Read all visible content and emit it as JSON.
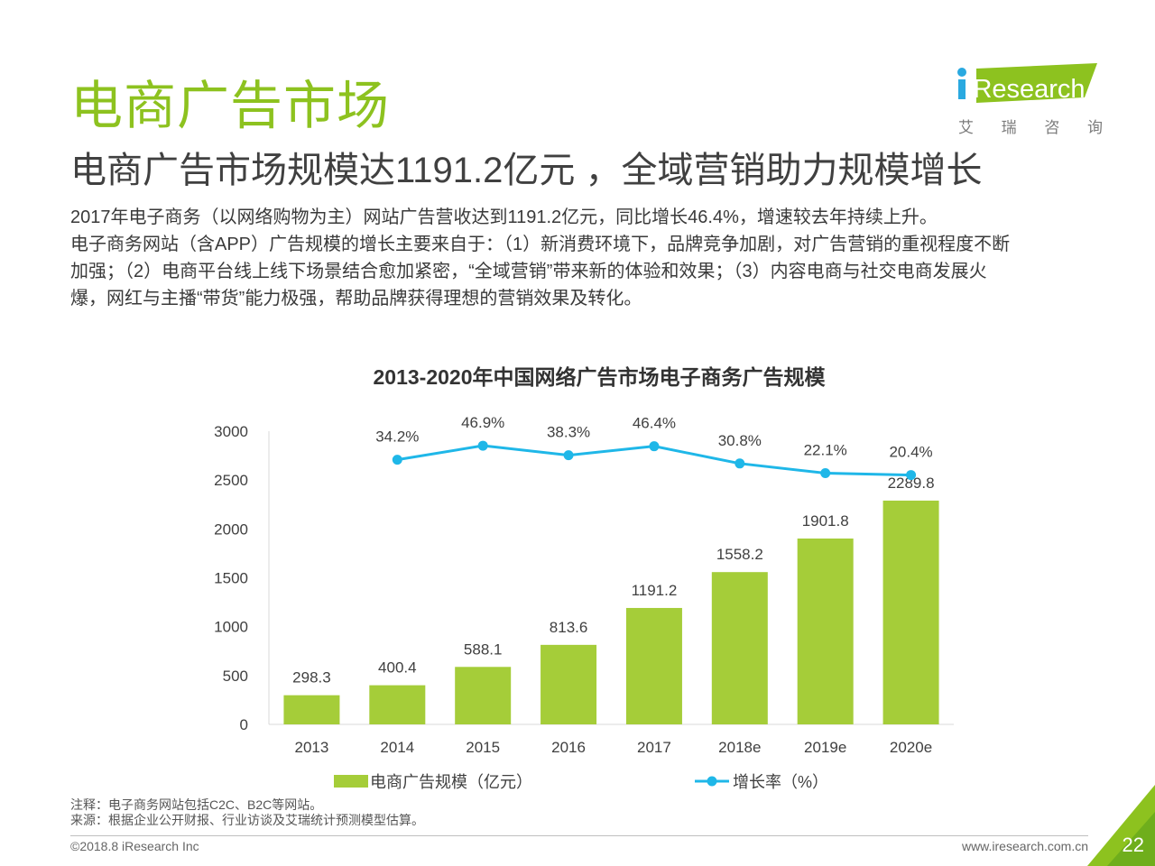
{
  "page": {
    "section_title": "电商广告市场",
    "headline": "电商广告市场规模达1191.2亿元 ，全域营销助力规模增长",
    "summary_lines": [
      "2017年电子商务（以网络购物为主）网站广告营收达到1191.2亿元，同比增长46.4%，增速较去年持续上升。",
      "电子商务网站（含APP）广告规模的增长主要来自于：（1）新消费环境下，品牌竞争加剧，对广告营销的重视程度不断",
      "加强；（2）电商平台线上线下场景结合愈加紧密，“全域营销”带来新的体验和效果；（3）内容电商与社交电商发展火",
      "爆，网红与主播“带货”能力极强，帮助品牌获得理想的营销效果及转化。"
    ],
    "note": "注释：电子商务网站包括C2C、B2C等网站。",
    "source": "来源：根据企业公开财报、行业访谈及艾瑞统计预测模型估算。",
    "copyright": "©2018.8 iResearch Inc",
    "website": "www.iresearch.com.cn",
    "page_number": "22"
  },
  "logo": {
    "name": "iResearch",
    "sub": [
      "艾",
      "瑞",
      "咨",
      "询"
    ]
  },
  "colors": {
    "accent_green": "#8dc21f",
    "bar_green": "#a5cd39",
    "line_blue": "#1fb7e8",
    "text_dark": "#404040"
  },
  "chart_data": {
    "type": "bar",
    "title": "2013-2020年中国网络广告市场电子商务广告规模",
    "categories": [
      "2013",
      "2014",
      "2015",
      "2016",
      "2017",
      "2018e",
      "2019e",
      "2020e"
    ],
    "series": [
      {
        "name": "电商广告规模（亿元）",
        "type": "bar",
        "values": [
          298.3,
          400.4,
          588.1,
          813.6,
          1191.2,
          1558.2,
          1901.8,
          2289.8
        ],
        "labels": [
          "298.3",
          "400.4",
          "588.1",
          "813.6",
          "1191.2",
          "1558.2",
          "1901.8",
          "2289.8"
        ]
      },
      {
        "name": "增长率（%）",
        "type": "line",
        "values": [
          null,
          34.2,
          46.9,
          38.3,
          46.4,
          30.8,
          22.1,
          20.4
        ],
        "labels": [
          "",
          "34.2%",
          "46.9%",
          "38.3%",
          "46.4%",
          "30.8%",
          "22.1%",
          "20.4%"
        ]
      }
    ],
    "y_ticks": [
      "0",
      "500",
      "1000",
      "1500",
      "2000",
      "2500",
      "3000"
    ],
    "ylim": [
      0,
      3000
    ],
    "line_ylim": [
      -205,
      60
    ],
    "legend": "bottom-center",
    "grid": false
  }
}
